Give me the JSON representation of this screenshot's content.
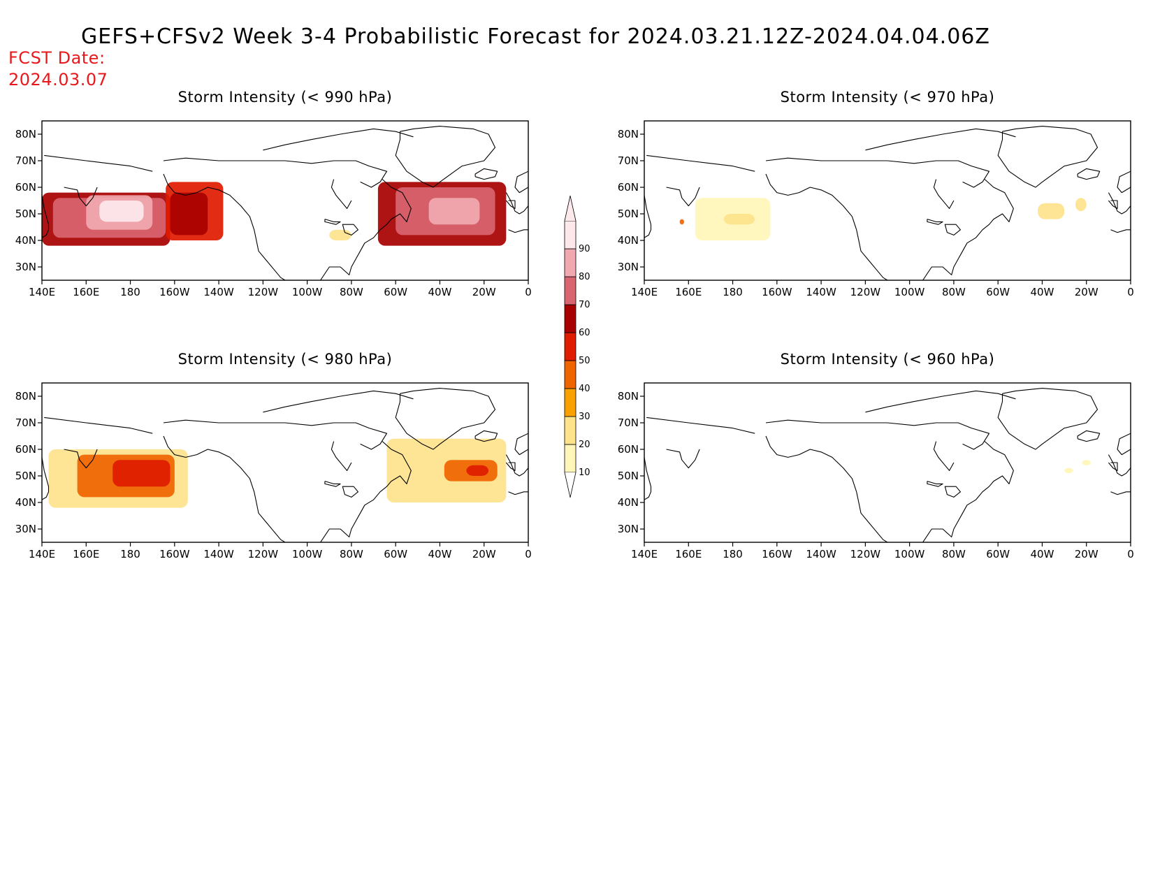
{
  "title": "GEFS+CFSv2 Week 3-4 Probabilistic Forecast for 2024.03.21.12Z-2024.04.04.06Z",
  "fcst_label": "FCST Date:",
  "fcst_date": "2024.03.07",
  "x_ticks": [
    "140E",
    "160E",
    "180",
    "160W",
    "140W",
    "120W",
    "100W",
    "80W",
    "60W",
    "40W",
    "20W",
    "0"
  ],
  "y_ticks": [
    "80N",
    "70N",
    "60N",
    "50N",
    "40N",
    "30N"
  ],
  "colorbar": {
    "levels": [
      "10",
      "20",
      "30",
      "40",
      "50",
      "60",
      "70",
      "80",
      "90"
    ],
    "colors": [
      "#fff6b9",
      "#fde38c",
      "#f8a100",
      "#f06400",
      "#df1b00",
      "#a80000",
      "#d96570",
      "#f1a9b1",
      "#fde8ec"
    ]
  },
  "panels": [
    {
      "title": "Storm Intensity (< 990 hPa)",
      "regions": [
        {
          "lon": [
            140,
            198
          ],
          "lat": [
            38,
            58
          ],
          "level": 5
        },
        {
          "lon": [
            145,
            196
          ],
          "lat": [
            41,
            56
          ],
          "level": 6
        },
        {
          "lon": [
            160,
            190
          ],
          "lat": [
            44,
            57
          ],
          "level": 7
        },
        {
          "lon": [
            166,
            186
          ],
          "lat": [
            47,
            55
          ],
          "level": 8
        },
        {
          "lon": [
            196,
            222
          ],
          "lat": [
            40,
            62
          ],
          "level": 4
        },
        {
          "lon": [
            198,
            215
          ],
          "lat": [
            42,
            58
          ],
          "level": 5
        },
        {
          "lon": [
            292,
            350
          ],
          "lat": [
            38,
            62
          ],
          "level": 5
        },
        {
          "lon": [
            300,
            345
          ],
          "lat": [
            42,
            60
          ],
          "level": 6
        },
        {
          "lon": [
            315,
            338
          ],
          "lat": [
            46,
            56
          ],
          "level": 7
        },
        {
          "lon": [
            270,
            280
          ],
          "lat": [
            40,
            44
          ],
          "level": 1
        }
      ]
    },
    {
      "title": "Storm Intensity (< 970 hPa)",
      "regions": [
        {
          "lon": [
            163,
            197
          ],
          "lat": [
            40,
            56
          ],
          "level": 0
        },
        {
          "lon": [
            176,
            190
          ],
          "lat": [
            46,
            50
          ],
          "level": 1
        },
        {
          "lon": [
            156,
            158
          ],
          "lat": [
            46,
            48
          ],
          "level": 3
        },
        {
          "lon": [
            318,
            330
          ],
          "lat": [
            48,
            54
          ],
          "level": 1
        },
        {
          "lon": [
            335,
            340
          ],
          "lat": [
            51,
            56
          ],
          "level": 1
        }
      ]
    },
    {
      "title": "Storm Intensity (< 980 hPa)",
      "regions": [
        {
          "lon": [
            143,
            206
          ],
          "lat": [
            38,
            60
          ],
          "level": 1
        },
        {
          "lon": [
            156,
            200
          ],
          "lat": [
            42,
            58
          ],
          "level": 3
        },
        {
          "lon": [
            172,
            198
          ],
          "lat": [
            46,
            56
          ],
          "level": 4
        },
        {
          "lon": [
            296,
            350
          ],
          "lat": [
            40,
            64
          ],
          "level": 1
        },
        {
          "lon": [
            322,
            346
          ],
          "lat": [
            48,
            56
          ],
          "level": 3
        },
        {
          "lon": [
            332,
            342
          ],
          "lat": [
            50,
            54
          ],
          "level": 4
        }
      ]
    },
    {
      "title": "Storm Intensity (< 960 hPa)",
      "regions": [
        {
          "lon": [
            330,
            334
          ],
          "lat": [
            51,
            53
          ],
          "level": 0
        },
        {
          "lon": [
            338,
            342
          ],
          "lat": [
            54,
            56
          ],
          "level": 0
        }
      ]
    }
  ]
}
